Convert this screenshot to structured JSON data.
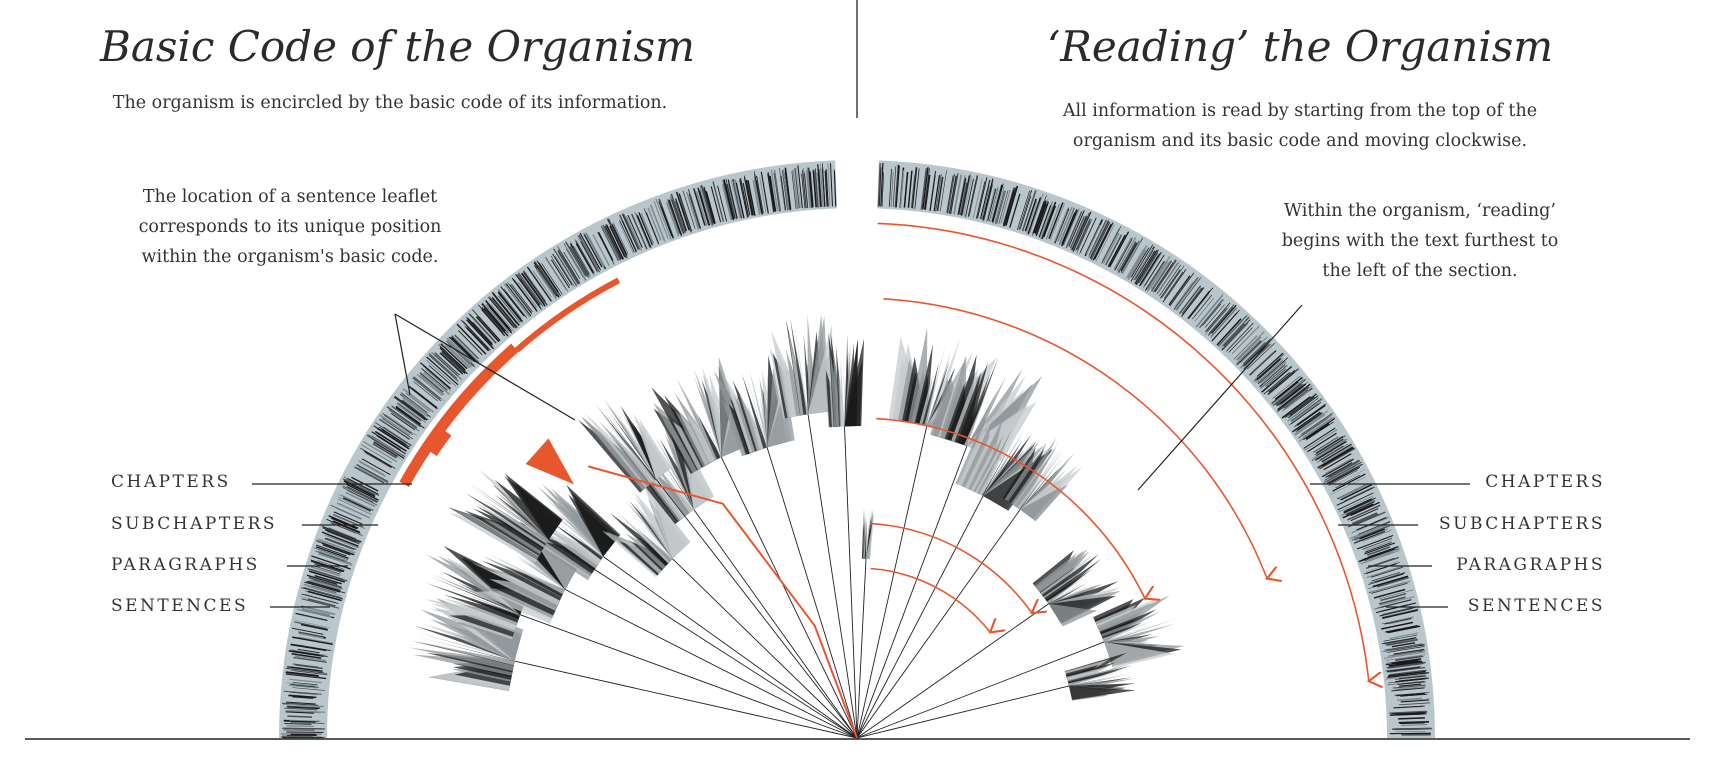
{
  "left_panel": {
    "title": "Basic Code of the Organism",
    "subtitle": "The organism is encircled by the basic code of its information.",
    "annotation": [
      "The location of a sentence leaflet",
      "corresponds to its unique position",
      "within the organism's basic code."
    ],
    "levels": [
      "CHAPTERS",
      "SUBCHAPTERS",
      "PARAGRAPHS",
      "SENTENCES"
    ]
  },
  "right_panel": {
    "title": "‘Reading’ the Organism",
    "subtitle": [
      "All information is read by starting from the top of the",
      "organism and its basic code and moving clockwise."
    ],
    "annotation": [
      "Within the organism, ‘reading’",
      "begins with the text furthest to",
      "the left of the section."
    ],
    "levels": [
      "CHAPTERS",
      "SUBCHAPTERS",
      "PARAGRAPHS",
      "SENTENCES"
    ]
  },
  "colors": {
    "ring": "#b9c7cd",
    "highlight": "#e8562e",
    "text": "#333333",
    "ink": "#1a1a1a"
  }
}
